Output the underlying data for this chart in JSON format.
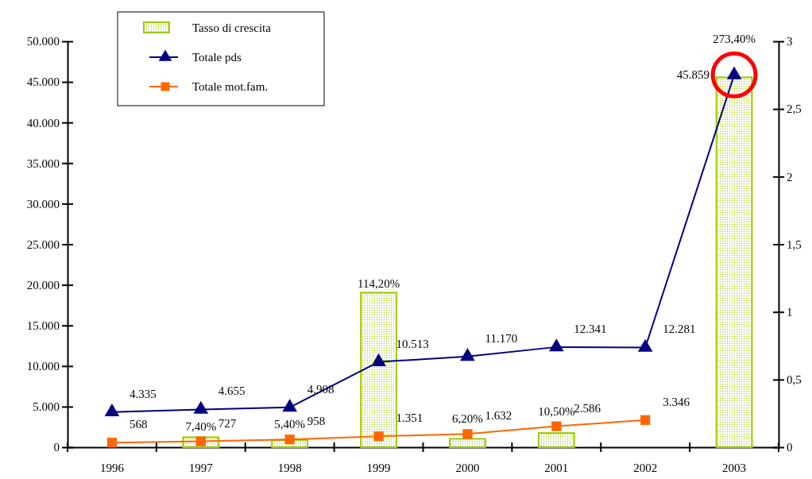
{
  "chart_data": {
    "type": "bar",
    "categories": [
      "1996",
      "1997",
      "1998",
      "1999",
      "2000",
      "2001",
      "2002",
      "2003"
    ],
    "series": [
      {
        "name": "Tasso di crescita",
        "axis": "y2",
        "color": "#99cc00",
        "values": [
          null,
          0.074,
          0.054,
          1.142,
          0.062,
          0.105,
          null,
          2.734
        ],
        "value_labels": [
          null,
          "7,40%",
          "5,40%",
          "114,20%",
          "6,20%",
          "10,50%",
          null,
          "273,40%"
        ]
      },
      {
        "name": "Totale pds",
        "type": "line",
        "color": "#000080",
        "marker": "triangle",
        "values": [
          4335,
          4655,
          4908,
          10513,
          11170,
          12341,
          12281,
          45859
        ],
        "value_labels": [
          "4.335",
          "4.655",
          "4.908",
          "10.513",
          "11.170",
          "12.341",
          "12.281",
          "45.859"
        ]
      },
      {
        "name": "Totale mot.fam.",
        "type": "line",
        "color": "#ff6600",
        "marker": "square",
        "values": [
          568,
          727,
          958,
          1351,
          1632,
          2586,
          3346,
          null
        ],
        "value_labels": [
          "568",
          "727",
          "958",
          "1.351",
          "1.632",
          "2.586",
          "3.346",
          null
        ]
      }
    ],
    "ylim": [
      0,
      50000
    ],
    "yticks": [
      {
        "value": 0,
        "label": "0"
      },
      {
        "value": 5000,
        "label": "5.000"
      },
      {
        "value": 10000,
        "label": "10.000"
      },
      {
        "value": 15000,
        "label": "15.000"
      },
      {
        "value": 20000,
        "label": "20.000"
      },
      {
        "value": 25000,
        "label": "25.000"
      },
      {
        "value": 30000,
        "label": "30.000"
      },
      {
        "value": 35000,
        "label": "35.000"
      },
      {
        "value": 40000,
        "label": "40.000"
      },
      {
        "value": 45000,
        "label": "45.000"
      },
      {
        "value": 50000,
        "label": "50.000"
      }
    ],
    "y2lim": [
      0,
      3
    ],
    "y2ticks": [
      0,
      {
        "value": 0.5,
        "label": "0,5"
      },
      1,
      {
        "value": 1.5,
        "label": "1,5"
      },
      2,
      {
        "value": 2.5,
        "label": "2,5"
      },
      3
    ],
    "legend": "top left",
    "grid": false
  }
}
